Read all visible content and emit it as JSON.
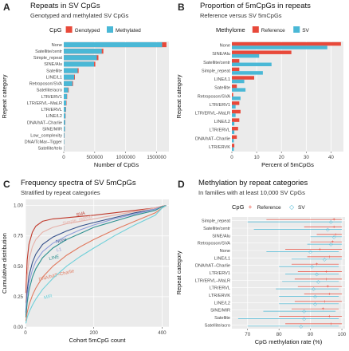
{
  "colors": {
    "red": "#e8493a",
    "blue": "#4ab8d6",
    "panel_bg": "#ebebeb",
    "grid": "#ffffff"
  },
  "panels": {
    "A": {
      "label": "A",
      "title": "Repeats in SV CpGs",
      "subtitle": "Genotyped and methylated SV CpGs",
      "legend_title": "CpG",
      "legend_items": [
        "Genotyped",
        "Methylated"
      ]
    },
    "B": {
      "label": "B",
      "title": "Proportion of 5mCpGs in repeats",
      "subtitle": "Reference versus SV 5mCpGs",
      "legend_title": "Methylome",
      "legend_items": [
        "Reference",
        "SV"
      ]
    },
    "C": {
      "label": "C",
      "title": "Frequency spectra of SV 5mCpGs",
      "subtitle": "Stratified by repeat categories"
    },
    "D": {
      "label": "D",
      "title": "Methylation by repeat categories",
      "subtitle": "In families with at least 10,000 SV CpGs",
      "legend_title": "CpG",
      "legend_items": [
        "Reference",
        "SV"
      ]
    }
  },
  "chart_data": [
    {
      "id": "A",
      "type": "bar",
      "orientation": "horizontal",
      "xlabel": "Number of CpGs",
      "ylabel": "Repeat category",
      "xlim": [
        0,
        1700000
      ],
      "xticks": [
        0,
        500000,
        1000000,
        1500000
      ],
      "xtick_labels": [
        "0",
        "500000",
        "1000000",
        "1500000"
      ],
      "categories": [
        "None",
        "Satellite/centr",
        "Simple_repeat",
        "SINE/Alu",
        "Satellite",
        "LINE/L1",
        "Retroposon/SVA",
        "Satellite/acro",
        "LTR/ERV1",
        "LTR/ERVL–MaLR",
        "LTR/ERVL",
        "LINE/L2",
        "DNA/hAT–Charlie",
        "SINE/MIR",
        "Low_complexity",
        "DNA/TcMar–Tigger",
        "Satellite/telo"
      ],
      "series": [
        {
          "name": "Genotyped",
          "values": [
            1660000,
            640000,
            560000,
            510000,
            240000,
            180000,
            150000,
            80000,
            55000,
            45000,
            38000,
            30000,
            25000,
            20000,
            12000,
            8000,
            5000
          ]
        },
        {
          "name": "Methylated",
          "values": [
            1590000,
            615000,
            535000,
            490000,
            225000,
            170000,
            140000,
            72000,
            50000,
            40000,
            34000,
            27000,
            22000,
            18000,
            10000,
            7000,
            4000
          ]
        }
      ]
    },
    {
      "id": "B",
      "type": "bar",
      "orientation": "horizontal",
      "xlabel": "Percent of 5mCpGs",
      "ylabel": "Repeat category",
      "xlim": [
        0,
        45
      ],
      "xticks": [
        0,
        10,
        20,
        30,
        40
      ],
      "xtick_labels": [
        "0",
        "10",
        "20",
        "30",
        "40"
      ],
      "categories": [
        "None",
        "SINE/Alu",
        "Satellite/centr",
        "Simple_repeat",
        "LINE/L1",
        "Satellite",
        "Retroposon/SVA",
        "LTR/ERV1",
        "LTR/ERVL–MaLR",
        "LINE/L2",
        "LTR/ERVL",
        "DNA/hAT–Charlie",
        "LTR/ERVK"
      ],
      "series": [
        {
          "name": "Reference",
          "values": [
            44,
            24,
            3.0,
            3.0,
            9.0,
            2.0,
            0.5,
            3.0,
            3.5,
            3.0,
            2.5,
            2.0,
            1.0
          ]
        },
        {
          "name": "SV",
          "values": [
            38.5,
            11,
            16,
            12.5,
            5,
            5.5,
            3.5,
            1.5,
            1.5,
            1.0,
            1.0,
            0.8,
            0.8
          ]
        }
      ]
    },
    {
      "id": "C",
      "type": "line",
      "xlabel": "Cohort 5mCpG count",
      "ylabel": "Cumulative distribution",
      "xlim": [
        0,
        420
      ],
      "ylim": [
        0,
        1.05
      ],
      "xticks": [
        0,
        200,
        400
      ],
      "xtick_labels": [
        "0",
        "200",
        "400"
      ],
      "yticks": [
        0,
        0.25,
        0.5,
        0.75,
        1.0
      ],
      "ytick_labels": [
        "0.00",
        "0.25",
        "0.50",
        "0.75",
        "1.00"
      ],
      "series": [
        {
          "name": "SVA",
          "color": "#c0392b",
          "label_pos": [
            150,
            0.91
          ],
          "x": [
            1,
            5,
            10,
            20,
            30,
            50,
            80,
            120,
            160,
            200,
            260,
            320,
            380,
            400,
            412
          ],
          "y": [
            0.28,
            0.55,
            0.68,
            0.78,
            0.83,
            0.87,
            0.89,
            0.9,
            0.91,
            0.92,
            0.94,
            0.96,
            0.98,
            0.995,
            1.0
          ]
        },
        {
          "name": "Simple_repeat",
          "color": "#e6b0a8",
          "label_pos": [
            110,
            0.84
          ],
          "x": [
            1,
            5,
            10,
            20,
            30,
            50,
            80,
            120,
            160,
            200,
            260,
            320,
            380,
            400,
            412
          ],
          "y": [
            0.2,
            0.42,
            0.55,
            0.66,
            0.72,
            0.78,
            0.82,
            0.85,
            0.87,
            0.89,
            0.92,
            0.95,
            0.98,
            0.995,
            1.0
          ]
        },
        {
          "name": "None",
          "color": "#34508a",
          "label_pos": [
            90,
            0.69
          ],
          "x": [
            1,
            5,
            10,
            20,
            30,
            50,
            80,
            120,
            160,
            200,
            260,
            320,
            380,
            400,
            412
          ],
          "y": [
            0.12,
            0.3,
            0.42,
            0.53,
            0.6,
            0.68,
            0.74,
            0.79,
            0.83,
            0.86,
            0.9,
            0.94,
            0.97,
            0.99,
            1.0
          ]
        },
        {
          "name": "L1",
          "color": "#8e9bd9",
          "label_pos": [
            92,
            0.62
          ],
          "x": [
            1,
            5,
            10,
            20,
            30,
            50,
            80,
            120,
            160,
            200,
            260,
            320,
            380,
            400,
            412
          ],
          "y": [
            0.1,
            0.25,
            0.36,
            0.47,
            0.54,
            0.62,
            0.69,
            0.75,
            0.8,
            0.84,
            0.89,
            0.93,
            0.97,
            0.99,
            1.0
          ]
        },
        {
          "name": "LINE",
          "color": "#2c8f8f",
          "label_pos": [
            70,
            0.55
          ],
          "x": [
            1,
            5,
            10,
            20,
            30,
            50,
            80,
            120,
            160,
            200,
            260,
            320,
            380,
            400,
            412
          ],
          "y": [
            0.08,
            0.2,
            0.3,
            0.41,
            0.48,
            0.57,
            0.65,
            0.72,
            0.77,
            0.82,
            0.87,
            0.92,
            0.96,
            0.99,
            1.0
          ]
        },
        {
          "name": "DNA/hAT–Charlie",
          "color": "#e07a5f",
          "label_pos": [
            40,
            0.38
          ],
          "x": [
            1,
            5,
            10,
            20,
            30,
            50,
            80,
            120,
            160,
            200,
            260,
            320,
            380,
            400,
            412
          ],
          "y": [
            0.05,
            0.12,
            0.18,
            0.26,
            0.32,
            0.41,
            0.5,
            0.59,
            0.66,
            0.72,
            0.8,
            0.87,
            0.94,
            0.98,
            1.0
          ]
        },
        {
          "name": "MIR",
          "color": "#6fd0d9",
          "label_pos": [
            55,
            0.23
          ],
          "x": [
            1,
            5,
            10,
            20,
            30,
            50,
            80,
            120,
            160,
            200,
            260,
            320,
            380,
            400,
            412
          ],
          "y": [
            0.03,
            0.08,
            0.12,
            0.18,
            0.23,
            0.31,
            0.4,
            0.5,
            0.58,
            0.65,
            0.75,
            0.84,
            0.92,
            0.98,
            1.0
          ]
        }
      ]
    },
    {
      "id": "D",
      "type": "scatter",
      "xlabel": "CpG methylation rate (%)",
      "ylabel": "Repeat category",
      "xlim": [
        65,
        101
      ],
      "xticks": [
        70,
        80,
        90,
        100
      ],
      "xtick_labels": [
        "70",
        "80",
        "90",
        "100"
      ],
      "categories": [
        "Simple_repeat",
        "Satellite/centr",
        "SINE/Alu",
        "Retroposon/SVA",
        "None",
        "LINE/L1",
        "DNA/hAT–Charlie",
        "LTR/ERV1",
        "LTR/ERVL–MaLR",
        "LTR/ERVL",
        "LTR/ERVK",
        "LINE/L2",
        "SINE/MIR",
        "Satellite",
        "Satellite/acro"
      ],
      "series": [
        {
          "name": "Reference",
          "points": [
            [
              97.5,
              76,
              100
            ],
            [
              97.5,
              88,
              100
            ],
            [
              98.0,
              92,
              100
            ],
            [
              97.0,
              90,
              100
            ],
            [
              93.0,
              82,
              100
            ],
            [
              96.0,
              89,
              100
            ],
            [
              92.0,
              84,
              99
            ],
            [
              95.0,
              86,
              100
            ],
            [
              95.0,
              85,
              100
            ],
            [
              95.5,
              86,
              100
            ],
            [
              96.0,
              88,
              100
            ],
            [
              94.5,
              85,
              100
            ],
            [
              94.0,
              84,
              99
            ],
            [
              96.0,
              80,
              100
            ],
            [
              96.5,
              82,
              100
            ]
          ]
        },
        {
          "name": "SV",
          "points": [
            [
              96.5,
              70,
              100
            ],
            [
              95.5,
              72,
              100
            ],
            [
              97.5,
              90,
              100
            ],
            [
              96.5,
              89,
              100
            ],
            [
              90.0,
              76,
              99
            ],
            [
              94.5,
              84,
              100
            ],
            [
              90.5,
              80,
              99
            ],
            [
              92.0,
              82,
              99
            ],
            [
              92.5,
              81,
              99
            ],
            [
              91.0,
              79,
              99
            ],
            [
              91.5,
              80,
              99
            ],
            [
              91.5,
              80,
              99
            ],
            [
              88.0,
              75,
              98
            ],
            [
              88.0,
              67,
              99
            ],
            [
              87.0,
              70,
              99
            ]
          ]
        }
      ]
    }
  ]
}
